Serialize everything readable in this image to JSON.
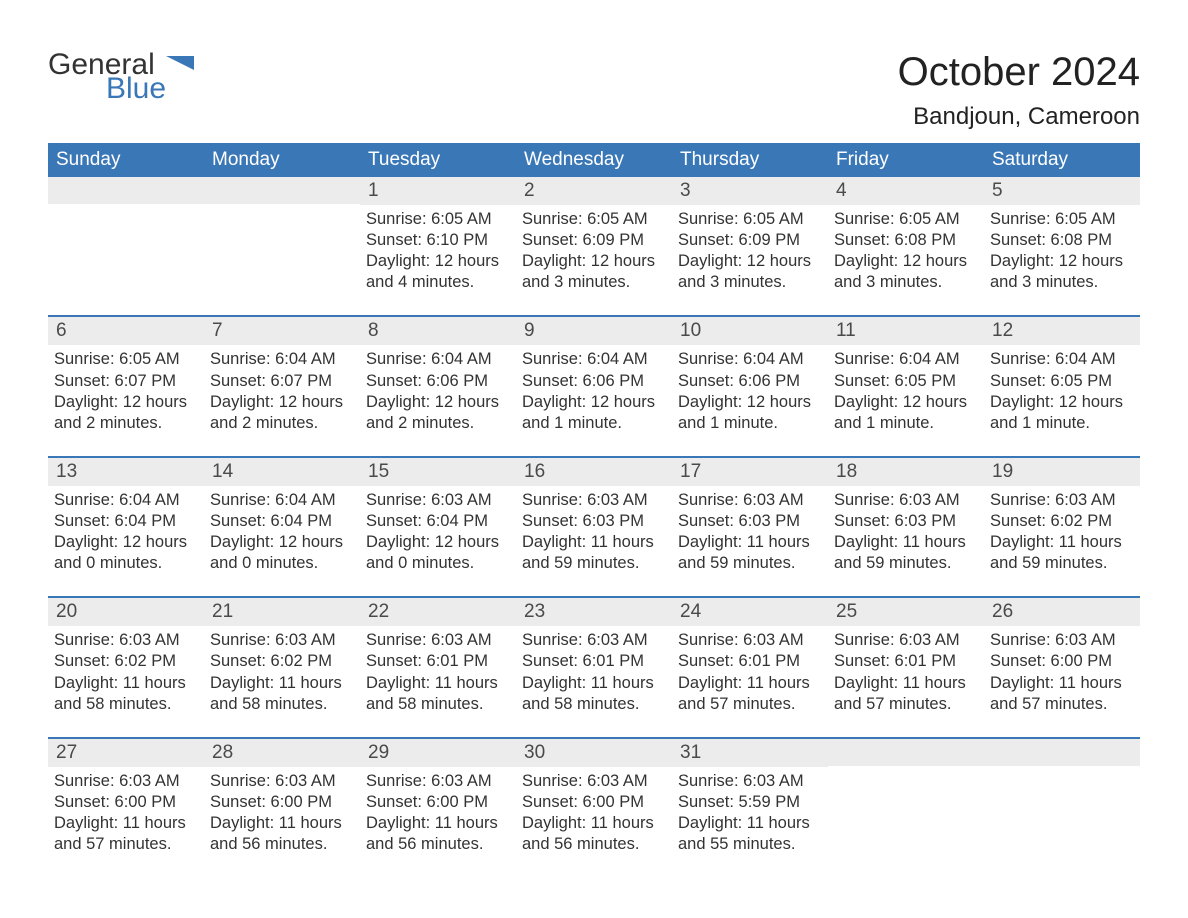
{
  "brand": {
    "text_general": "General",
    "text_blue": "Blue",
    "flag_color": "#3a77b7",
    "general_color": "#333333"
  },
  "title": {
    "month": "October 2024",
    "location": "Bandjoun, Cameroon"
  },
  "colors": {
    "header_bg": "#3a77b7",
    "header_text": "#ffffff",
    "daynum_bg": "#ececec",
    "body_text": "#333333",
    "rule": "#3a77b7"
  },
  "day_headers": [
    "Sunday",
    "Monday",
    "Tuesday",
    "Wednesday",
    "Thursday",
    "Friday",
    "Saturday"
  ],
  "weeks": [
    [
      {
        "n": "",
        "sunrise": "",
        "sunset": "",
        "daylight": ""
      },
      {
        "n": "",
        "sunrise": "",
        "sunset": "",
        "daylight": ""
      },
      {
        "n": "1",
        "sunrise": "Sunrise: 6:05 AM",
        "sunset": "Sunset: 6:10 PM",
        "daylight": "Daylight: 12 hours and 4 minutes."
      },
      {
        "n": "2",
        "sunrise": "Sunrise: 6:05 AM",
        "sunset": "Sunset: 6:09 PM",
        "daylight": "Daylight: 12 hours and 3 minutes."
      },
      {
        "n": "3",
        "sunrise": "Sunrise: 6:05 AM",
        "sunset": "Sunset: 6:09 PM",
        "daylight": "Daylight: 12 hours and 3 minutes."
      },
      {
        "n": "4",
        "sunrise": "Sunrise: 6:05 AM",
        "sunset": "Sunset: 6:08 PM",
        "daylight": "Daylight: 12 hours and 3 minutes."
      },
      {
        "n": "5",
        "sunrise": "Sunrise: 6:05 AM",
        "sunset": "Sunset: 6:08 PM",
        "daylight": "Daylight: 12 hours and 3 minutes."
      }
    ],
    [
      {
        "n": "6",
        "sunrise": "Sunrise: 6:05 AM",
        "sunset": "Sunset: 6:07 PM",
        "daylight": "Daylight: 12 hours and 2 minutes."
      },
      {
        "n": "7",
        "sunrise": "Sunrise: 6:04 AM",
        "sunset": "Sunset: 6:07 PM",
        "daylight": "Daylight: 12 hours and 2 minutes."
      },
      {
        "n": "8",
        "sunrise": "Sunrise: 6:04 AM",
        "sunset": "Sunset: 6:06 PM",
        "daylight": "Daylight: 12 hours and 2 minutes."
      },
      {
        "n": "9",
        "sunrise": "Sunrise: 6:04 AM",
        "sunset": "Sunset: 6:06 PM",
        "daylight": "Daylight: 12 hours and 1 minute."
      },
      {
        "n": "10",
        "sunrise": "Sunrise: 6:04 AM",
        "sunset": "Sunset: 6:06 PM",
        "daylight": "Daylight: 12 hours and 1 minute."
      },
      {
        "n": "11",
        "sunrise": "Sunrise: 6:04 AM",
        "sunset": "Sunset: 6:05 PM",
        "daylight": "Daylight: 12 hours and 1 minute."
      },
      {
        "n": "12",
        "sunrise": "Sunrise: 6:04 AM",
        "sunset": "Sunset: 6:05 PM",
        "daylight": "Daylight: 12 hours and 1 minute."
      }
    ],
    [
      {
        "n": "13",
        "sunrise": "Sunrise: 6:04 AM",
        "sunset": "Sunset: 6:04 PM",
        "daylight": "Daylight: 12 hours and 0 minutes."
      },
      {
        "n": "14",
        "sunrise": "Sunrise: 6:04 AM",
        "sunset": "Sunset: 6:04 PM",
        "daylight": "Daylight: 12 hours and 0 minutes."
      },
      {
        "n": "15",
        "sunrise": "Sunrise: 6:03 AM",
        "sunset": "Sunset: 6:04 PM",
        "daylight": "Daylight: 12 hours and 0 minutes."
      },
      {
        "n": "16",
        "sunrise": "Sunrise: 6:03 AM",
        "sunset": "Sunset: 6:03 PM",
        "daylight": "Daylight: 11 hours and 59 minutes."
      },
      {
        "n": "17",
        "sunrise": "Sunrise: 6:03 AM",
        "sunset": "Sunset: 6:03 PM",
        "daylight": "Daylight: 11 hours and 59 minutes."
      },
      {
        "n": "18",
        "sunrise": "Sunrise: 6:03 AM",
        "sunset": "Sunset: 6:03 PM",
        "daylight": "Daylight: 11 hours and 59 minutes."
      },
      {
        "n": "19",
        "sunrise": "Sunrise: 6:03 AM",
        "sunset": "Sunset: 6:02 PM",
        "daylight": "Daylight: 11 hours and 59 minutes."
      }
    ],
    [
      {
        "n": "20",
        "sunrise": "Sunrise: 6:03 AM",
        "sunset": "Sunset: 6:02 PM",
        "daylight": "Daylight: 11 hours and 58 minutes."
      },
      {
        "n": "21",
        "sunrise": "Sunrise: 6:03 AM",
        "sunset": "Sunset: 6:02 PM",
        "daylight": "Daylight: 11 hours and 58 minutes."
      },
      {
        "n": "22",
        "sunrise": "Sunrise: 6:03 AM",
        "sunset": "Sunset: 6:01 PM",
        "daylight": "Daylight: 11 hours and 58 minutes."
      },
      {
        "n": "23",
        "sunrise": "Sunrise: 6:03 AM",
        "sunset": "Sunset: 6:01 PM",
        "daylight": "Daylight: 11 hours and 58 minutes."
      },
      {
        "n": "24",
        "sunrise": "Sunrise: 6:03 AM",
        "sunset": "Sunset: 6:01 PM",
        "daylight": "Daylight: 11 hours and 57 minutes."
      },
      {
        "n": "25",
        "sunrise": "Sunrise: 6:03 AM",
        "sunset": "Sunset: 6:01 PM",
        "daylight": "Daylight: 11 hours and 57 minutes."
      },
      {
        "n": "26",
        "sunrise": "Sunrise: 6:03 AM",
        "sunset": "Sunset: 6:00 PM",
        "daylight": "Daylight: 11 hours and 57 minutes."
      }
    ],
    [
      {
        "n": "27",
        "sunrise": "Sunrise: 6:03 AM",
        "sunset": "Sunset: 6:00 PM",
        "daylight": "Daylight: 11 hours and 57 minutes."
      },
      {
        "n": "28",
        "sunrise": "Sunrise: 6:03 AM",
        "sunset": "Sunset: 6:00 PM",
        "daylight": "Daylight: 11 hours and 56 minutes."
      },
      {
        "n": "29",
        "sunrise": "Sunrise: 6:03 AM",
        "sunset": "Sunset: 6:00 PM",
        "daylight": "Daylight: 11 hours and 56 minutes."
      },
      {
        "n": "30",
        "sunrise": "Sunrise: 6:03 AM",
        "sunset": "Sunset: 6:00 PM",
        "daylight": "Daylight: 11 hours and 56 minutes."
      },
      {
        "n": "31",
        "sunrise": "Sunrise: 6:03 AM",
        "sunset": "Sunset: 5:59 PM",
        "daylight": "Daylight: 11 hours and 55 minutes."
      },
      {
        "n": "",
        "sunrise": "",
        "sunset": "",
        "daylight": ""
      },
      {
        "n": "",
        "sunrise": "",
        "sunset": "",
        "daylight": ""
      }
    ]
  ]
}
